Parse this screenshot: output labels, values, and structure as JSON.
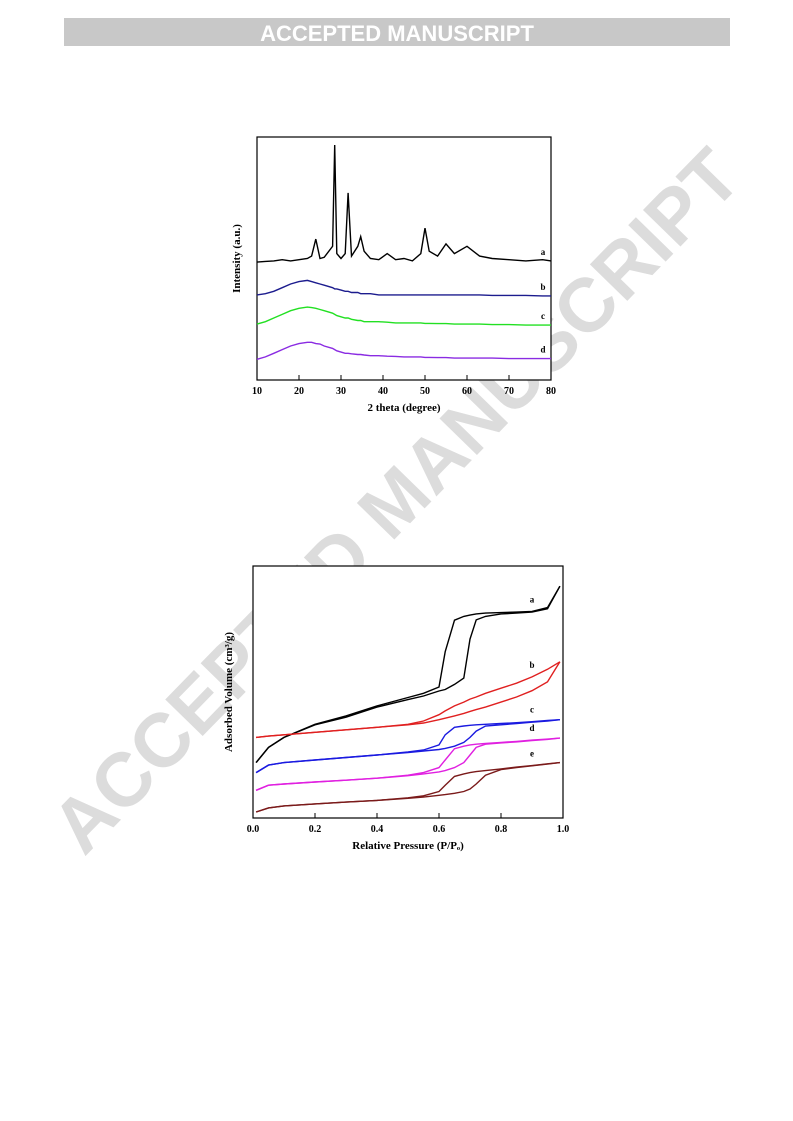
{
  "header": {
    "title": "ACCEPTED MANUSCRIPT"
  },
  "watermark": "ACCEPTED MANUSCRIPT",
  "chart_data": [
    {
      "type": "line",
      "xlabel": "2 theta (degree)",
      "ylabel": "Intensity (a.u.)",
      "xlim": [
        10,
        80
      ],
      "xticks": [
        10,
        20,
        30,
        40,
        50,
        60,
        70,
        80
      ],
      "ylim": [
        0,
        100
      ],
      "x": [
        10,
        12,
        14,
        16,
        18,
        20,
        22,
        23,
        24,
        25,
        26,
        28,
        28.5,
        29,
        30,
        31,
        31.7,
        32.5,
        34,
        34.7,
        35.5,
        37,
        39,
        41,
        43,
        45,
        47,
        49,
        50,
        51,
        53,
        55,
        57,
        60,
        63,
        66,
        70,
        74,
        78,
        80
      ],
      "series": [
        {
          "name": "a",
          "color": "#000000",
          "values": [
            48.5,
            48.8,
            49,
            49.5,
            49,
            49.5,
            50,
            51,
            58,
            50,
            50.5,
            55,
            96.7,
            52,
            50,
            52,
            77,
            51,
            55,
            59,
            53,
            50,
            49.5,
            52,
            49.5,
            50,
            49,
            52,
            62.5,
            53,
            51,
            56,
            52,
            55,
            51,
            50,
            49.5,
            49,
            49.5,
            49
          ]
        },
        {
          "name": "b",
          "color": "#1c1c8e",
          "values": [
            35,
            35.5,
            36.5,
            38,
            39.5,
            40.5,
            41,
            40.5,
            40,
            39.5,
            39,
            38,
            37.5,
            37.5,
            37,
            36.5,
            36.5,
            36,
            36,
            35.5,
            35.5,
            35.5,
            35,
            35,
            35,
            35,
            35,
            35,
            35,
            35,
            35,
            35,
            35,
            35,
            35,
            34.8,
            34.8,
            34.8,
            34.6,
            34.6
          ]
        },
        {
          "name": "c",
          "color": "#22e022",
          "values": [
            23,
            24,
            25.5,
            27,
            28.5,
            29.5,
            30,
            29.8,
            29.5,
            29,
            28.5,
            27.5,
            27,
            26.5,
            26,
            25.5,
            25.5,
            25,
            24.5,
            24.5,
            24,
            24,
            24,
            23.8,
            23.5,
            23.5,
            23.5,
            23.5,
            23.3,
            23.3,
            23.2,
            23.2,
            23,
            23,
            23,
            22.8,
            22.8,
            22.6,
            22.6,
            22.6
          ]
        },
        {
          "name": "d",
          "color": "#8a2be2",
          "values": [
            8.5,
            9.5,
            11,
            12.5,
            14,
            15,
            15.5,
            15.5,
            15,
            14.8,
            14,
            13,
            12.5,
            12,
            11.5,
            11,
            11,
            10.8,
            10.5,
            10.5,
            10.3,
            10,
            10,
            9.8,
            9.7,
            9.5,
            9.5,
            9.5,
            9.3,
            9.3,
            9.2,
            9.2,
            9,
            9,
            9,
            9,
            8.8,
            8.8,
            8.8,
            8.8
          ]
        }
      ]
    },
    {
      "type": "line",
      "xlabel": "Relative Pressure (P/Pₒ)",
      "ylabel": "Adsorbed Volume (cm³/g)",
      "xlim": [
        0,
        1
      ],
      "xticks": [
        {
          "value": 0,
          "label": "0.0"
        },
        0.2,
        0.4,
        0.6,
        0.8,
        {
          "value": 1,
          "label": "1.0"
        }
      ],
      "ylim": [
        0,
        100
      ],
      "x": [
        0.01,
        0.05,
        0.1,
        0.2,
        0.3,
        0.4,
        0.5,
        0.55,
        0.6,
        0.62,
        0.65,
        0.68,
        0.7,
        0.72,
        0.75,
        0.8,
        0.85,
        0.9,
        0.95,
        0.99
      ],
      "series": [
        {
          "name": "a",
          "color": "#000000",
          "values": [
            22,
            28,
            32,
            37,
            40,
            44,
            47,
            48.4,
            50.4,
            51,
            53,
            55.5,
            71,
            78.6,
            80,
            81,
            81.3,
            81.7,
            83,
            92
          ],
          "desorption": [
            22,
            28,
            32,
            37.2,
            40.5,
            44.5,
            47.8,
            49.5,
            52,
            66,
            78.5,
            80,
            80.5,
            81,
            81.3,
            81.5,
            81.7,
            82,
            83.5,
            92
          ]
        },
        {
          "name": "b",
          "color": "#e02020",
          "values": [
            32,
            32.5,
            33,
            34,
            35,
            36,
            37,
            37.7,
            39,
            39.6,
            40.5,
            41.5,
            42.3,
            43,
            44,
            46,
            48,
            50.5,
            54,
            62
          ],
          "desorption": [
            32,
            32.5,
            33,
            34,
            35,
            36,
            37.2,
            38.5,
            41,
            42.5,
            44.5,
            46,
            47.2,
            48,
            49.5,
            51.5,
            53.5,
            56,
            59,
            62
          ]
        },
        {
          "name": "c",
          "color": "#1a1ae0",
          "values": [
            18,
            21,
            22,
            23,
            24,
            25,
            26,
            26.6,
            27.2,
            27.6,
            28.5,
            30,
            32,
            34.5,
            36.5,
            37,
            37.5,
            38,
            38.5,
            39
          ],
          "desorption": [
            18,
            21,
            22,
            23,
            24,
            25,
            26.2,
            27,
            29,
            33,
            36,
            36.5,
            36.8,
            37,
            37.2,
            37.5,
            37.8,
            38.2,
            38.7,
            39
          ]
        },
        {
          "name": "d",
          "color": "#e020e0",
          "values": [
            11,
            13,
            13.5,
            14.3,
            15,
            15.8,
            16.8,
            17.5,
            18.3,
            18.8,
            20,
            22,
            25,
            28,
            29.3,
            29.8,
            30.2,
            30.7,
            31.2,
            31.7
          ],
          "desorption": [
            11,
            13,
            13.5,
            14.3,
            15,
            15.8,
            17,
            18,
            20,
            23,
            27.5,
            28.5,
            29,
            29.3,
            29.6,
            30,
            30.4,
            30.9,
            31.3,
            31.7
          ]
        },
        {
          "name": "e",
          "color": "#7a1a1a",
          "values": [
            2.4,
            4,
            4.8,
            5.6,
            6.3,
            7,
            7.8,
            8.3,
            9,
            9.3,
            9.8,
            10.5,
            11.5,
            13.5,
            17,
            19.2,
            20,
            20.7,
            21.4,
            22
          ],
          "desorption": [
            2.4,
            4,
            4.8,
            5.6,
            6.3,
            7,
            8,
            8.8,
            10.5,
            13,
            16.5,
            17.5,
            18,
            18.4,
            18.8,
            19.5,
            20.2,
            20.8,
            21.5,
            22
          ]
        }
      ]
    }
  ]
}
